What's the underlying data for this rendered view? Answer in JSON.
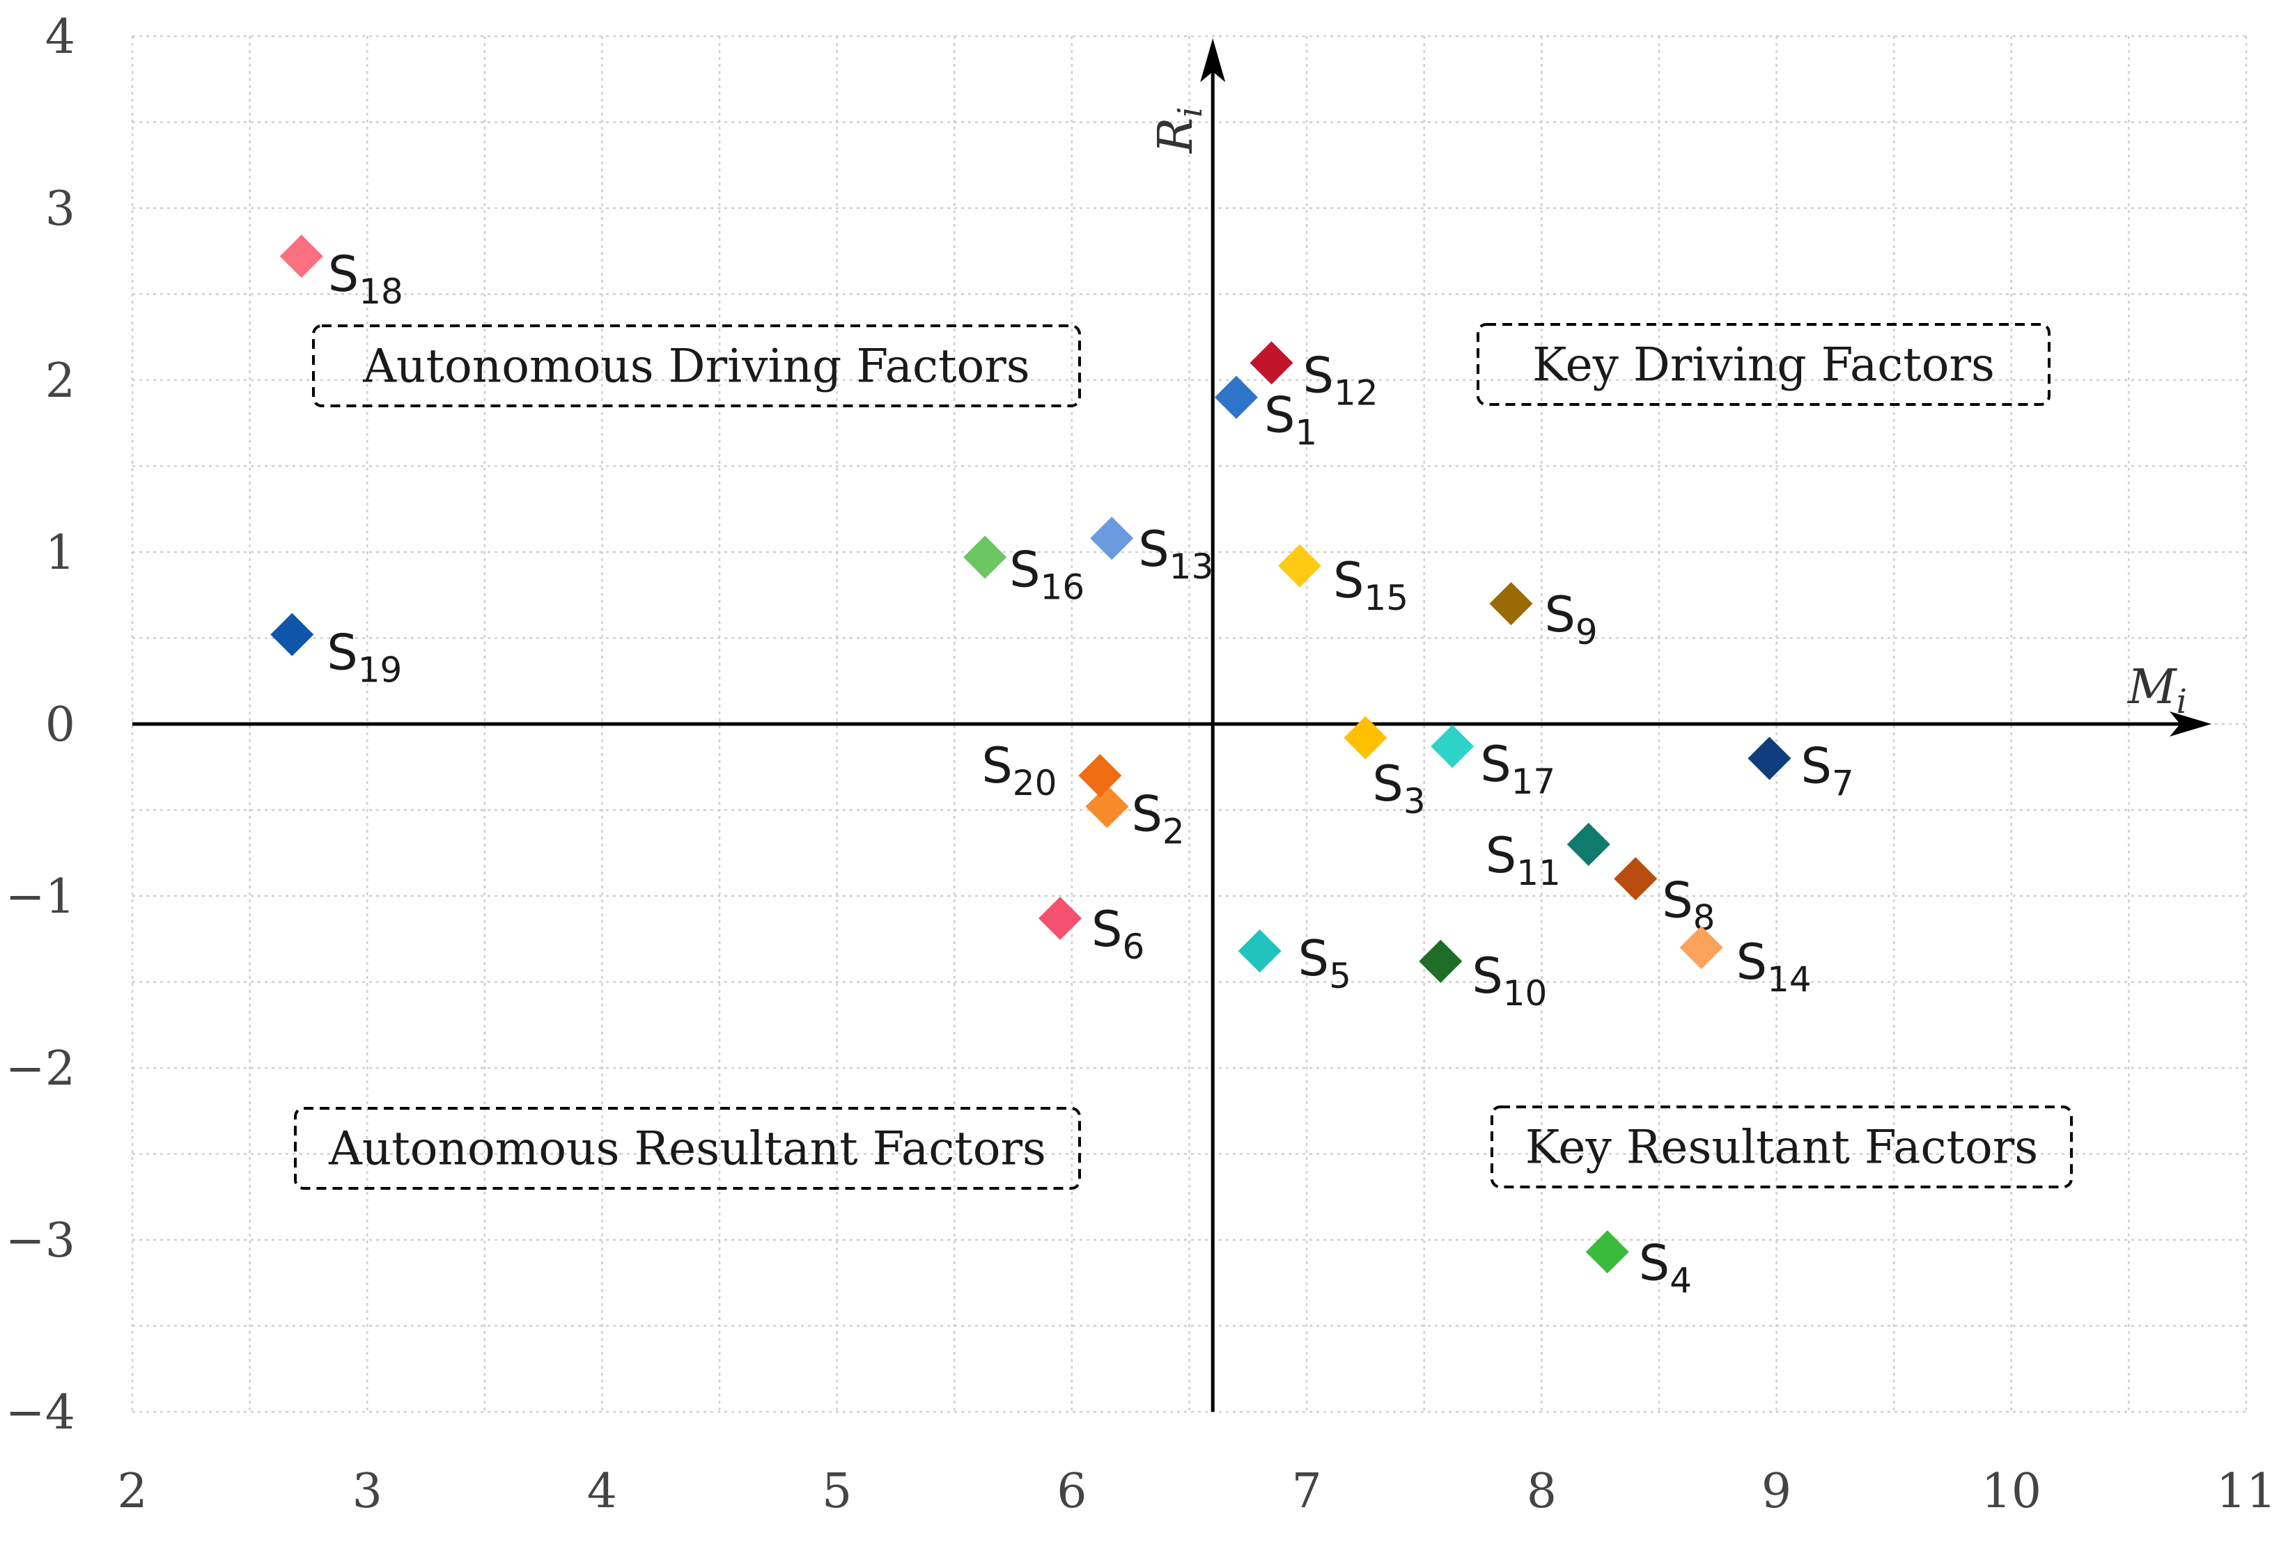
{
  "chart_data": {
    "type": "scatter",
    "title": "",
    "xlabel": {
      "main": "M",
      "sub": "i"
    },
    "ylabel": {
      "main": "R",
      "sub": "i"
    },
    "xlim": [
      2,
      11
    ],
    "ylim": [
      -4,
      4
    ],
    "x_ticks": [
      "2",
      "3",
      "4",
      "5",
      "6",
      "7",
      "8",
      "9",
      "10",
      "11"
    ],
    "y_ticks": [
      "4",
      "3",
      "2",
      "1",
      "0",
      "−1",
      "−2",
      "−3",
      "−4"
    ],
    "grid": true,
    "y_axis_at_x": 6.6,
    "marker": "diamond",
    "points": [
      {
        "name": "S",
        "sub": "1",
        "x": 6.7,
        "y": 1.9,
        "color": "#2e74c9"
      },
      {
        "name": "S",
        "sub": "2",
        "x": 6.15,
        "y": -0.48,
        "color": "#f98a2c"
      },
      {
        "name": "S",
        "sub": "3",
        "x": 7.25,
        "y": -0.08,
        "color": "#ffc000"
      },
      {
        "name": "S",
        "sub": "4",
        "x": 8.28,
        "y": -3.07,
        "color": "#3cba3c"
      },
      {
        "name": "S",
        "sub": "5",
        "x": 6.8,
        "y": -1.32,
        "color": "#22c3be"
      },
      {
        "name": "S",
        "sub": "6",
        "x": 5.95,
        "y": -1.13,
        "color": "#f5506e"
      },
      {
        "name": "S",
        "sub": "7",
        "x": 8.97,
        "y": -0.2,
        "color": "#0f3c7d"
      },
      {
        "name": "S",
        "sub": "8",
        "x": 8.4,
        "y": -0.9,
        "color": "#b84d0e"
      },
      {
        "name": "S",
        "sub": "9",
        "x": 7.87,
        "y": 0.7,
        "color": "#9a6a05"
      },
      {
        "name": "S",
        "sub": "10",
        "x": 7.57,
        "y": -1.38,
        "color": "#1f6e28"
      },
      {
        "name": "S",
        "sub": "11",
        "x": 8.2,
        "y": -0.7,
        "color": "#0f7a6e"
      },
      {
        "name": "S",
        "sub": "12",
        "x": 6.85,
        "y": 2.1,
        "color": "#c0152a"
      },
      {
        "name": "S",
        "sub": "13",
        "x": 6.17,
        "y": 1.08,
        "color": "#6a9be0"
      },
      {
        "name": "S",
        "sub": "14",
        "x": 8.68,
        "y": -1.3,
        "color": "#fca25a"
      },
      {
        "name": "S",
        "sub": "15",
        "x": 6.97,
        "y": 0.92,
        "color": "#ffcb12"
      },
      {
        "name": "S",
        "sub": "16",
        "x": 5.63,
        "y": 0.97,
        "color": "#6cc661"
      },
      {
        "name": "S",
        "sub": "17",
        "x": 7.62,
        "y": -0.13,
        "color": "#2ed3c7"
      },
      {
        "name": "S",
        "sub": "18",
        "x": 2.72,
        "y": 2.72,
        "color": "#fa7080"
      },
      {
        "name": "S",
        "sub": "19",
        "x": 2.68,
        "y": 0.52,
        "color": "#0d56aa"
      },
      {
        "name": "S",
        "sub": "20",
        "x": 6.12,
        "y": -0.3,
        "color": "#f06c12"
      }
    ],
    "annotations": [
      {
        "text": "Autonomous Driving Factors",
        "quadrant": "top-left"
      },
      {
        "text": "Key Driving Factors",
        "quadrant": "top-right"
      },
      {
        "text": "Autonomous Resultant Factors",
        "quadrant": "bottom-left"
      },
      {
        "text": "Key Resultant Factors",
        "quadrant": "bottom-right"
      }
    ]
  }
}
